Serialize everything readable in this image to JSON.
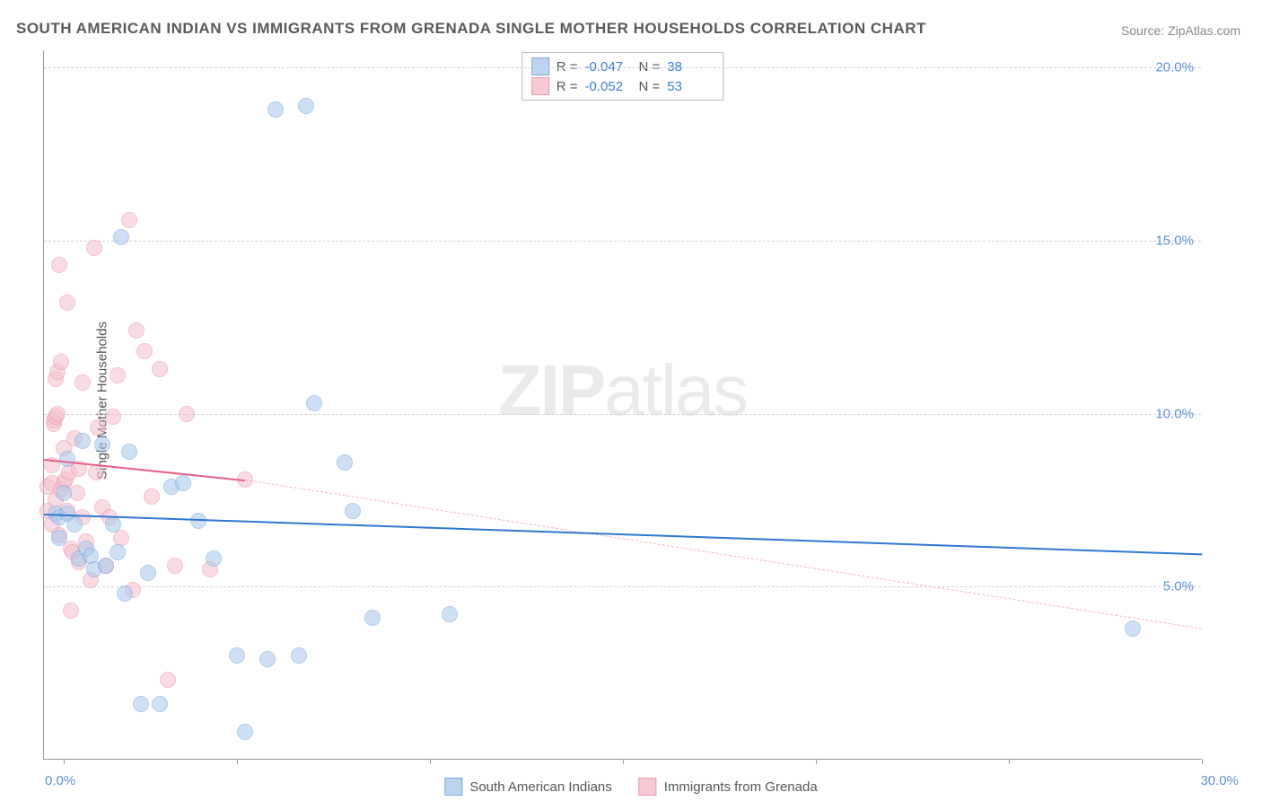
{
  "title": "SOUTH AMERICAN INDIAN VS IMMIGRANTS FROM GRENADA SINGLE MOTHER HOUSEHOLDS CORRELATION CHART",
  "source": "Source: ZipAtlas.com",
  "yaxis_title": "Single Mother Households",
  "watermark_bold": "ZIP",
  "watermark_light": "atlas",
  "chart": {
    "type": "scatter",
    "background_color": "#ffffff",
    "grid_color": "#d0d0d0",
    "axis_color": "#999999",
    "tick_label_color": "#5b8fd6",
    "tick_fontsize": 15,
    "title_fontsize": 17,
    "title_color": "#5a5a5a",
    "xlim": [
      0,
      30
    ],
    "ylim": [
      0,
      20.5
    ],
    "yticks": [
      5,
      10,
      15,
      20
    ],
    "ytick_labels": [
      "5.0%",
      "10.0%",
      "15.0%",
      "20.0%"
    ],
    "xtick_marks": [
      0.5,
      5,
      10,
      15,
      20,
      25,
      30
    ],
    "xtick_label_left": "0.0%",
    "xtick_label_right": "30.0%",
    "marker_radius": 9,
    "marker_opacity": 0.55,
    "series": [
      {
        "name": "South American Indians",
        "color_fill": "#a9c8ec",
        "color_stroke": "#6fa3de",
        "swatch_fill": "#bcd4ef",
        "swatch_stroke": "#7fa8d8",
        "R": "-0.047",
        "N": "38",
        "trend": {
          "x1": 0,
          "y1": 7.1,
          "x2": 30,
          "y2": 5.95,
          "color": "#2e78d2",
          "width": 2.5,
          "dash": false
        },
        "points": [
          [
            0.3,
            7.1
          ],
          [
            0.4,
            7.0
          ],
          [
            0.4,
            6.4
          ],
          [
            0.5,
            7.7
          ],
          [
            0.6,
            8.7
          ],
          [
            0.6,
            7.1
          ],
          [
            0.8,
            6.8
          ],
          [
            0.9,
            5.8
          ],
          [
            1.0,
            9.2
          ],
          [
            1.1,
            6.1
          ],
          [
            1.2,
            5.9
          ],
          [
            1.3,
            5.5
          ],
          [
            1.5,
            9.1
          ],
          [
            1.6,
            5.6
          ],
          [
            1.8,
            6.8
          ],
          [
            1.9,
            6.0
          ],
          [
            2.0,
            15.1
          ],
          [
            2.1,
            4.8
          ],
          [
            2.2,
            8.9
          ],
          [
            2.5,
            1.6
          ],
          [
            2.7,
            5.4
          ],
          [
            3.0,
            1.6
          ],
          [
            3.3,
            7.9
          ],
          [
            3.6,
            8.0
          ],
          [
            4.0,
            6.9
          ],
          [
            4.4,
            5.8
          ],
          [
            5.0,
            3.0
          ],
          [
            5.2,
            0.8
          ],
          [
            5.8,
            2.9
          ],
          [
            6.0,
            18.8
          ],
          [
            6.6,
            3.0
          ],
          [
            6.8,
            18.9
          ],
          [
            7.0,
            10.3
          ],
          [
            7.8,
            8.6
          ],
          [
            8.0,
            7.2
          ],
          [
            8.5,
            4.1
          ],
          [
            10.5,
            4.2
          ],
          [
            28.2,
            3.8
          ]
        ]
      },
      {
        "name": "Immigrants from Grenada",
        "color_fill": "#f5c1cd",
        "color_stroke": "#e98fa5",
        "swatch_fill": "#f6c9d4",
        "swatch_stroke": "#e59bad",
        "R": "-0.052",
        "N": "53",
        "trend_solid": {
          "x1": 0,
          "y1": 8.7,
          "x2": 5.2,
          "y2": 8.1,
          "color": "#e85f87",
          "width": 2.5
        },
        "trend_dash": {
          "x1": 5.2,
          "y1": 8.1,
          "x2": 30,
          "y2": 3.8,
          "color": "#f1b4c3",
          "width": 1.2
        },
        "points": [
          [
            0.1,
            7.2
          ],
          [
            0.1,
            7.9
          ],
          [
            0.2,
            8.0
          ],
          [
            0.2,
            8.5
          ],
          [
            0.2,
            6.8
          ],
          [
            0.25,
            9.7
          ],
          [
            0.25,
            9.8
          ],
          [
            0.3,
            9.9
          ],
          [
            0.3,
            7.5
          ],
          [
            0.3,
            11.0
          ],
          [
            0.35,
            10.0
          ],
          [
            0.35,
            11.2
          ],
          [
            0.4,
            14.3
          ],
          [
            0.4,
            6.5
          ],
          [
            0.45,
            11.5
          ],
          [
            0.45,
            7.8
          ],
          [
            0.5,
            8.0
          ],
          [
            0.5,
            9.0
          ],
          [
            0.55,
            8.1
          ],
          [
            0.6,
            7.2
          ],
          [
            0.6,
            13.2
          ],
          [
            0.65,
            8.3
          ],
          [
            0.7,
            6.1
          ],
          [
            0.7,
            4.3
          ],
          [
            0.75,
            6.0
          ],
          [
            0.8,
            9.3
          ],
          [
            0.85,
            7.7
          ],
          [
            0.9,
            5.7
          ],
          [
            0.9,
            8.4
          ],
          [
            1.0,
            10.9
          ],
          [
            1.0,
            7.0
          ],
          [
            1.1,
            6.3
          ],
          [
            1.2,
            5.2
          ],
          [
            1.3,
            14.8
          ],
          [
            1.35,
            8.3
          ],
          [
            1.4,
            9.6
          ],
          [
            1.5,
            7.3
          ],
          [
            1.6,
            5.6
          ],
          [
            1.7,
            7.0
          ],
          [
            1.8,
            9.9
          ],
          [
            1.9,
            11.1
          ],
          [
            2.0,
            6.4
          ],
          [
            2.2,
            15.6
          ],
          [
            2.3,
            4.9
          ],
          [
            2.4,
            12.4
          ],
          [
            2.6,
            11.8
          ],
          [
            2.8,
            7.6
          ],
          [
            3.0,
            11.3
          ],
          [
            3.2,
            2.3
          ],
          [
            3.4,
            5.6
          ],
          [
            3.7,
            10.0
          ],
          [
            4.3,
            5.5
          ],
          [
            5.2,
            8.1
          ]
        ]
      }
    ]
  },
  "stats_labels": {
    "R": "R =",
    "N": "N ="
  }
}
